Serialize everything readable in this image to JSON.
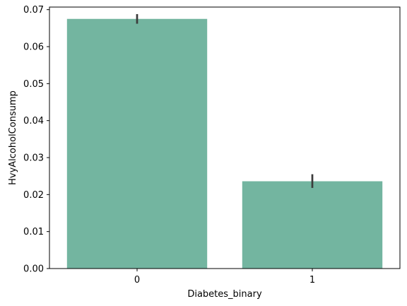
{
  "chart_data": {
    "type": "bar",
    "title": "",
    "xlabel": "Diabetes_binary",
    "ylabel": "HvyAlcoholConsump",
    "categories": [
      "0",
      "1"
    ],
    "values": [
      0.0675,
      0.0236
    ],
    "error_bars": [
      [
        0.0662,
        0.0688
      ],
      [
        0.0218,
        0.0255
      ]
    ],
    "ylim": [
      0,
      0.0707
    ],
    "yticks": [
      0.0,
      0.01,
      0.02,
      0.03,
      0.04,
      0.05,
      0.06,
      0.07
    ],
    "ytick_labels": [
      "0.00",
      "0.01",
      "0.02",
      "0.03",
      "0.04",
      "0.05",
      "0.06",
      "0.07"
    ],
    "grid": false,
    "colors": {
      "bar": "#73b5a0",
      "error": "#3b3b3b",
      "axis": "#000000"
    }
  }
}
